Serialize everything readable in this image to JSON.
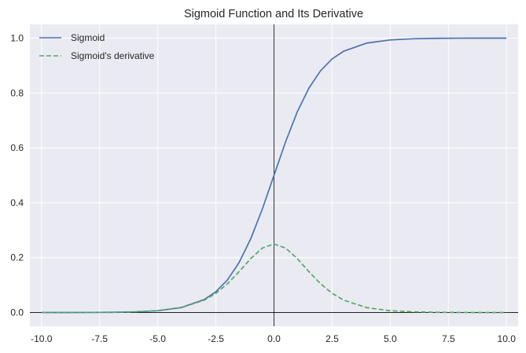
{
  "chart_data": {
    "type": "line",
    "title": "Sigmoid Function and Its Derivative",
    "xlabel": "",
    "ylabel": "",
    "xlim": [
      -10.5,
      10.5
    ],
    "ylim": [
      -0.05,
      1.05
    ],
    "x_ticks": [
      -10.0,
      -7.5,
      -5.0,
      -2.5,
      0.0,
      2.5,
      5.0,
      7.5,
      10.0
    ],
    "x_tick_labels": [
      "-10.0",
      "-7.5",
      "-5.0",
      "-2.5",
      "0.0",
      "2.5",
      "5.0",
      "7.5",
      "10.0"
    ],
    "y_ticks": [
      0.0,
      0.2,
      0.4,
      0.6,
      0.8,
      1.0
    ],
    "y_tick_labels": [
      "0.0",
      "0.2",
      "0.4",
      "0.6",
      "0.8",
      "1.0"
    ],
    "grid": true,
    "background": "#eaeaf2",
    "axis_lines": {
      "x": 0,
      "y": 0
    },
    "legend": {
      "placement": "top-left"
    },
    "series": [
      {
        "name": "Sigmoid",
        "color": "#4c72b0",
        "style": "solid",
        "x": [
          -10,
          -9,
          -8,
          -7,
          -6,
          -5,
          -4,
          -3,
          -2.5,
          -2,
          -1.5,
          -1,
          -0.5,
          0,
          0.5,
          1,
          1.5,
          2,
          2.5,
          3,
          4,
          5,
          6,
          7,
          8,
          9,
          10
        ],
        "y": [
          5e-05,
          0.00012,
          0.00034,
          0.00091,
          0.00247,
          0.00669,
          0.01799,
          0.04743,
          0.07586,
          0.1192,
          0.18243,
          0.26894,
          0.37754,
          0.5,
          0.62246,
          0.73106,
          0.81757,
          0.8808,
          0.92414,
          0.95257,
          0.98201,
          0.99331,
          0.99753,
          0.99909,
          0.99966,
          0.99988,
          0.99995
        ]
      },
      {
        "name": "Sigmoid's derivative",
        "color": "#55a868",
        "style": "dashed",
        "x": [
          -10,
          -9,
          -8,
          -7,
          -6,
          -5,
          -4,
          -3,
          -2.5,
          -2,
          -1.5,
          -1,
          -0.5,
          0,
          0.5,
          1,
          1.5,
          2,
          2.5,
          3,
          4,
          5,
          6,
          7,
          8,
          9,
          10
        ],
        "y": [
          5e-05,
          0.00012,
          0.00034,
          0.00091,
          0.00247,
          0.00665,
          0.01766,
          0.04518,
          0.07011,
          0.10499,
          0.14915,
          0.19661,
          0.235,
          0.25,
          0.235,
          0.19661,
          0.14915,
          0.10499,
          0.07011,
          0.04518,
          0.01766,
          0.00665,
          0.00247,
          0.00091,
          0.00034,
          0.00012,
          5e-05
        ]
      }
    ]
  }
}
